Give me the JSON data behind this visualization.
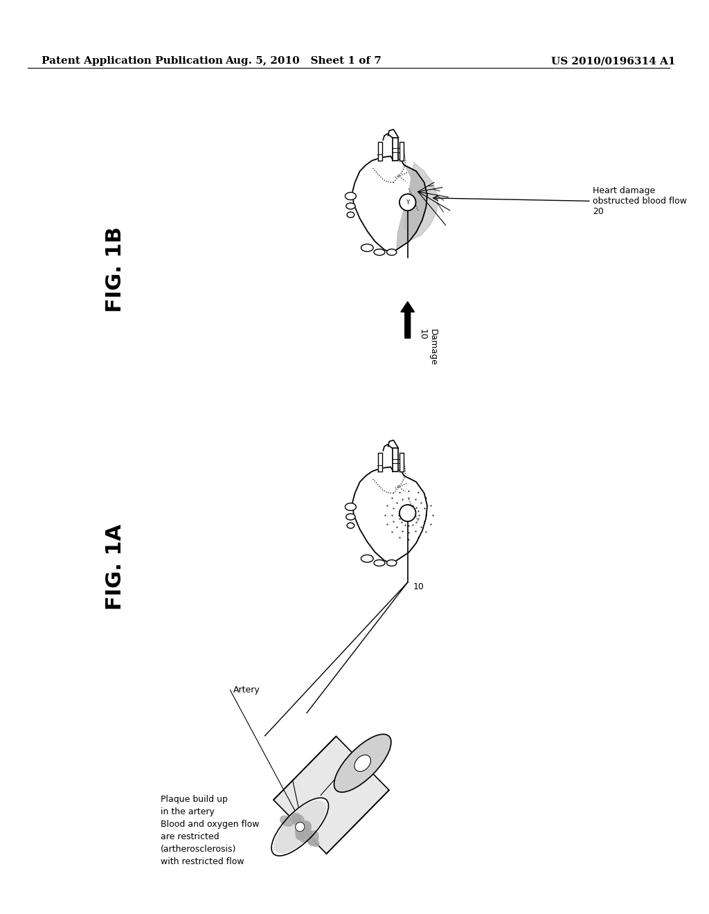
{
  "background_color": "#ffffff",
  "text_color": "#000000",
  "header_left": "Patent Application Publication",
  "header_center": "Aug. 5, 2010   Sheet 1 of 7",
  "header_right": "US 2010/0196314 A1",
  "fig1a_label": "FIG. 1A",
  "fig1b_label": "FIG. 1B",
  "label_10_1a": "10",
  "label_10_1b": "10",
  "damage_label": "Damage\n10",
  "artery_label": "Artery",
  "plaque_label": "Plaque build up\nin the artery\nBlood and oxygen flow\nare restricted\n(artherosclerosis)\nwith restricted flow",
  "heart_damage_label": "Heart damage\nobstructed blood flow\n20",
  "gray_color": "#b8b8b8",
  "light_gray": "#d8d8d8",
  "dark_gray": "#888888"
}
